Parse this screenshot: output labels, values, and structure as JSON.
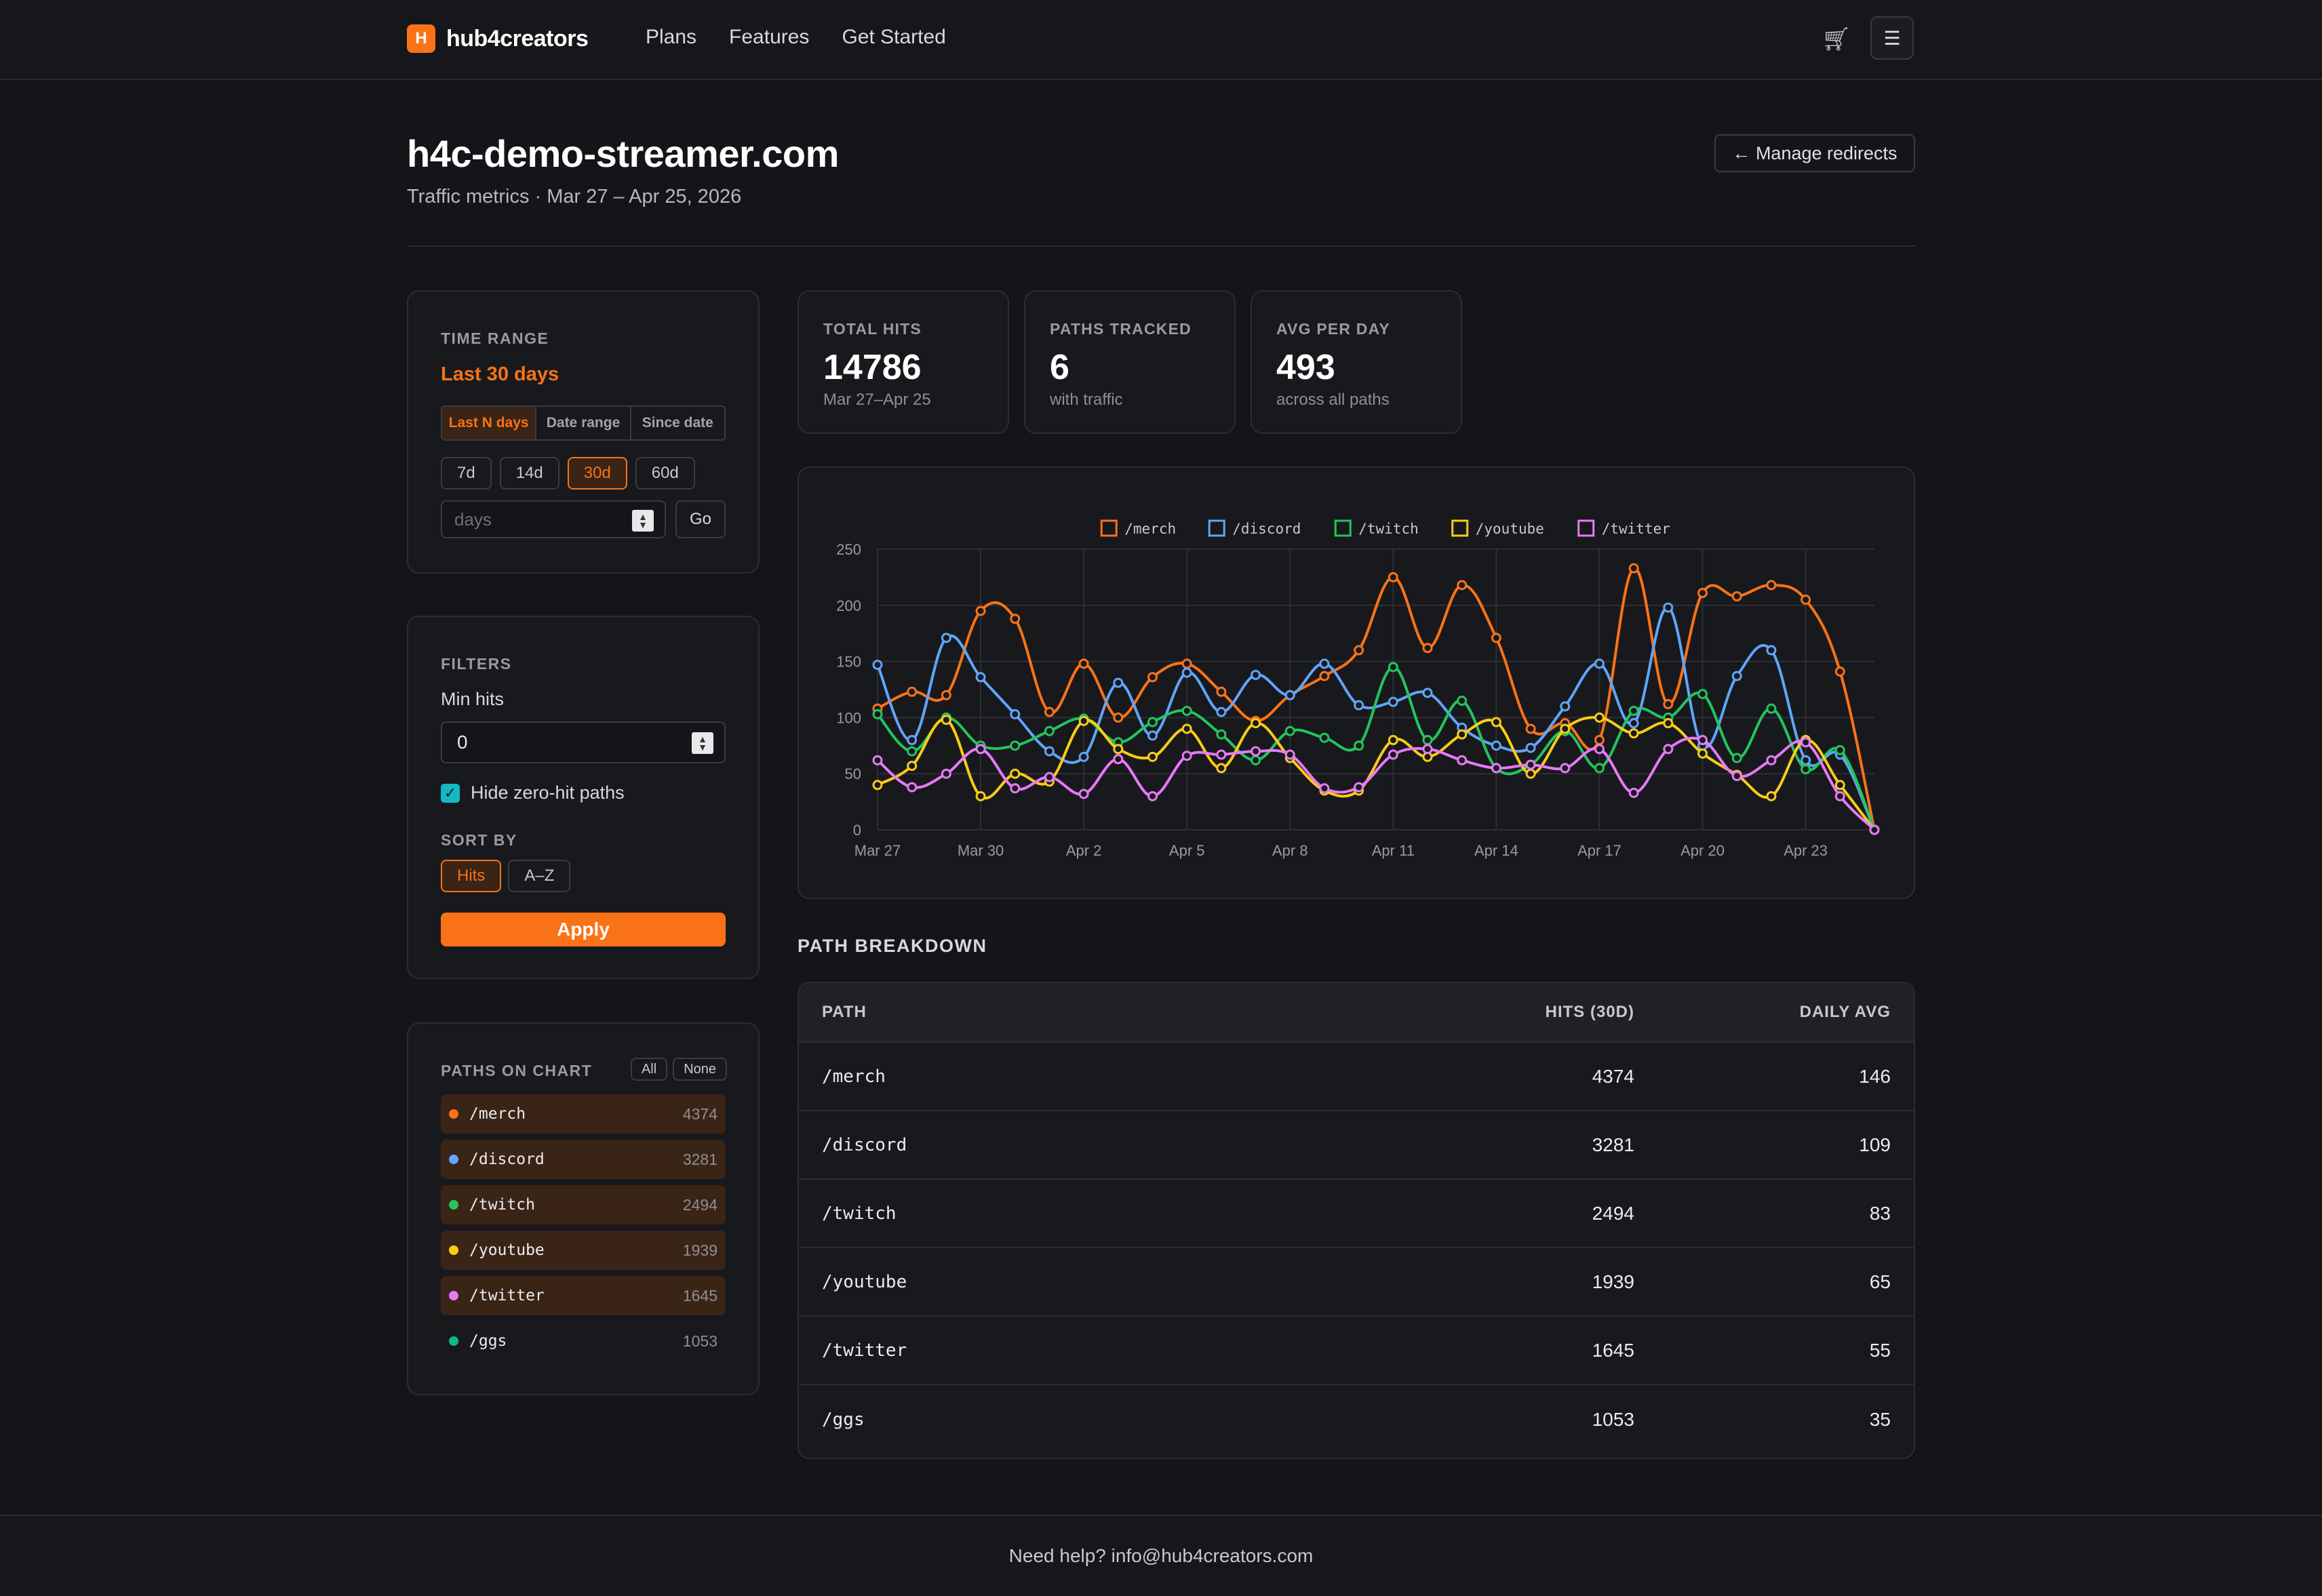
{
  "nav": {
    "logo_letter": "H",
    "brand": "hub4creators",
    "links": [
      "Plans",
      "Features",
      "Get Started"
    ],
    "cart_icon": "cart-icon",
    "menu_icon": "menu-icon"
  },
  "header": {
    "title": "h4c-demo-streamer.com",
    "subtitle": "Traffic metrics · Mar 27 – Apr 25, 2026",
    "manage_button": "← Manage redirects"
  },
  "time_range": {
    "label": "TIME RANGE",
    "value": "Last 30 days",
    "modes": [
      "Last N days",
      "Date range",
      "Since date"
    ],
    "presets": [
      "7d",
      "14d",
      "30d",
      "60d"
    ],
    "days_placeholder": "days",
    "go_label": "Go"
  },
  "filters": {
    "label": "FILTERS",
    "min_hits_label": "Min hits",
    "min_hits_value": "0",
    "hide_zero_label": "Hide zero-hit paths",
    "hide_zero_checked": true,
    "sort_label": "SORT BY",
    "sort_options": [
      "Hits",
      "A–Z"
    ],
    "apply_label": "Apply"
  },
  "paths_on_chart": {
    "label": "PATHS ON CHART",
    "all_label": "All",
    "none_label": "None",
    "items": [
      {
        "path": "/merch",
        "count": "4374",
        "color": "#f97316",
        "selected": true
      },
      {
        "path": "/discord",
        "count": "3281",
        "color": "#60a5fa",
        "selected": true
      },
      {
        "path": "/twitch",
        "count": "2494",
        "color": "#22c55e",
        "selected": true
      },
      {
        "path": "/youtube",
        "count": "1939",
        "color": "#facc15",
        "selected": true
      },
      {
        "path": "/twitter",
        "count": "1645",
        "color": "#e879f9",
        "selected": true
      },
      {
        "path": "/ggs",
        "count": "1053",
        "color": "#10b981",
        "selected": false
      }
    ]
  },
  "stats": [
    {
      "label": "TOTAL HITS",
      "value": "14786",
      "sub": "Mar 27–Apr 25"
    },
    {
      "label": "PATHS TRACKED",
      "value": "6",
      "sub": "with traffic"
    },
    {
      "label": "AVG PER DAY",
      "value": "493",
      "sub": "across all paths"
    }
  ],
  "chart_data": {
    "type": "line",
    "x": [
      "Mar 27",
      "Mar 28",
      "Mar 29",
      "Mar 30",
      "Mar 31",
      "Apr 1",
      "Apr 2",
      "Apr 3",
      "Apr 4",
      "Apr 5",
      "Apr 6",
      "Apr 7",
      "Apr 8",
      "Apr 9",
      "Apr 10",
      "Apr 11",
      "Apr 12",
      "Apr 13",
      "Apr 14",
      "Apr 15",
      "Apr 16",
      "Apr 17",
      "Apr 18",
      "Apr 19",
      "Apr 20",
      "Apr 21",
      "Apr 22",
      "Apr 23",
      "Apr 24",
      "Apr 25"
    ],
    "x_tick_labels": [
      "Mar 27",
      "Mar 30",
      "Apr 2",
      "Apr 5",
      "Apr 8",
      "Apr 11",
      "Apr 14",
      "Apr 17",
      "Apr 20",
      "Apr 23"
    ],
    "ylim": [
      0,
      250
    ],
    "y_ticks": [
      0,
      50,
      100,
      150,
      200,
      250
    ],
    "grid": true,
    "legend_position": "top-center",
    "series": [
      {
        "name": "/merch",
        "color": "#f97316",
        "values": [
          108,
          123,
          120,
          195,
          188,
          105,
          148,
          100,
          136,
          148,
          123,
          97,
          120,
          137,
          160,
          225,
          162,
          218,
          171,
          90,
          95,
          80,
          233,
          112,
          211,
          208,
          218,
          205,
          141,
          0
        ]
      },
      {
        "name": "/discord",
        "color": "#60a5fa",
        "values": [
          147,
          80,
          171,
          136,
          103,
          70,
          65,
          131,
          84,
          140,
          105,
          138,
          120,
          148,
          111,
          114,
          122,
          91,
          75,
          73,
          110,
          148,
          95,
          198,
          75,
          137,
          160,
          62,
          67,
          0
        ]
      },
      {
        "name": "/twitch",
        "color": "#22c55e",
        "values": [
          103,
          70,
          100,
          75,
          75,
          88,
          99,
          78,
          96,
          106,
          85,
          62,
          88,
          82,
          75,
          145,
          80,
          115,
          55,
          58,
          88,
          55,
          106,
          100,
          121,
          64,
          108,
          54,
          71,
          0
        ]
      },
      {
        "name": "/youtube",
        "color": "#facc15",
        "values": [
          40,
          57,
          98,
          30,
          50,
          43,
          97,
          72,
          65,
          90,
          55,
          95,
          64,
          35,
          35,
          80,
          65,
          85,
          96,
          50,
          90,
          100,
          86,
          95,
          68,
          49,
          30,
          80,
          40,
          0
        ]
      },
      {
        "name": "/twitter",
        "color": "#e879f9",
        "values": [
          62,
          38,
          50,
          72,
          37,
          47,
          32,
          63,
          30,
          66,
          67,
          70,
          67,
          37,
          38,
          67,
          72,
          62,
          55,
          58,
          55,
          72,
          33,
          72,
          80,
          48,
          62,
          78,
          30,
          0
        ]
      }
    ]
  },
  "breakdown": {
    "title": "PATH BREAKDOWN",
    "columns": [
      "PATH",
      "HITS (30D)",
      "DAILY AVG"
    ],
    "rows": [
      [
        "/merch",
        "4374",
        "146"
      ],
      [
        "/discord",
        "3281",
        "109"
      ],
      [
        "/twitch",
        "2494",
        "83"
      ],
      [
        "/youtube",
        "1939",
        "65"
      ],
      [
        "/twitter",
        "1645",
        "55"
      ],
      [
        "/ggs",
        "1053",
        "35"
      ]
    ]
  },
  "footer": {
    "text": "Need help? info@hub4creators.com"
  }
}
